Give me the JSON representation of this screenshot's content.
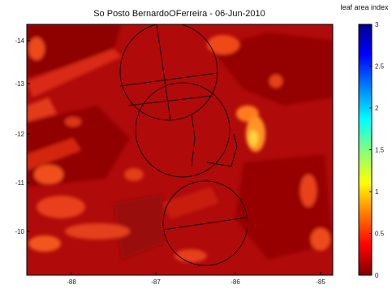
{
  "chart_data": {
    "type": "heatmap",
    "title": "So Posto BernardoOFerreira - 06-Jun-2010",
    "colorbar": {
      "label": "leaf area index",
      "min": 0,
      "max": 3,
      "ticks": [
        0,
        0.5,
        1,
        1.5,
        2,
        2.5,
        3
      ],
      "tick_labels": [
        "0",
        "0.5",
        "1",
        "1.5",
        "2",
        "2.5",
        "3"
      ],
      "colormap": [
        "#7f0000",
        "#ff0000",
        "#ff8000",
        "#ffff00",
        "#80ff80",
        "#00ffff",
        "#0080ff",
        "#0000ff",
        "#00008f"
      ]
    },
    "x_tick_labels": [
      "-88",
      "-87",
      "-86",
      "-85"
    ],
    "y_tick_labels": [
      "-14",
      "-13",
      "-12",
      "-11",
      "-10"
    ],
    "xlabel": "",
    "ylabel": "",
    "grid": false,
    "value_range_observed": [
      0,
      0.9
    ]
  }
}
